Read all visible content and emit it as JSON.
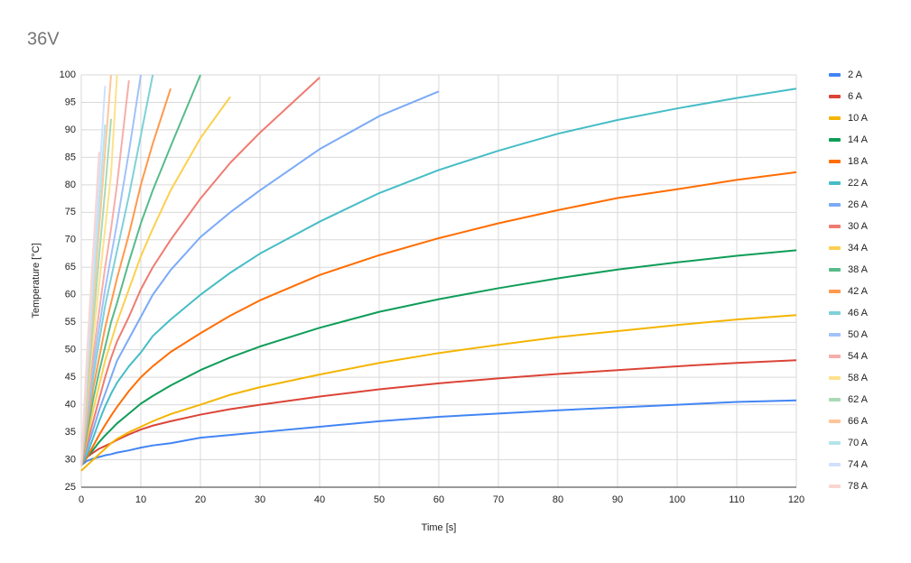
{
  "chart_data": {
    "type": "line",
    "title": "36V",
    "x_label": "Time [s]",
    "y_label": "Temperature [°C]",
    "x": [
      0,
      1,
      2,
      3,
      4,
      5,
      6,
      8,
      10,
      12,
      15,
      20,
      25,
      30,
      40,
      50,
      60,
      70,
      80,
      90,
      100,
      110,
      120
    ],
    "xlim": [
      0,
      120
    ],
    "xticks": [
      0,
      10,
      20,
      30,
      40,
      50,
      60,
      70,
      80,
      90,
      100,
      110,
      120
    ],
    "ylim": [
      25,
      100
    ],
    "yticks": [
      25,
      30,
      35,
      40,
      45,
      50,
      55,
      60,
      65,
      70,
      75,
      80,
      85,
      90,
      95,
      100
    ],
    "grid": true,
    "legend": "right",
    "series": [
      {
        "name": "2 A",
        "color": "#4285f4",
        "values": [
          29,
          29.8,
          30.2,
          30.5,
          30.8,
          31,
          31.3,
          31.7,
          32.2,
          32.6,
          33,
          34,
          34.5,
          35,
          36,
          37,
          37.8,
          38.4,
          39,
          39.5,
          40,
          40.5,
          40.8
        ]
      },
      {
        "name": "6 A",
        "color": "#db4437",
        "values": [
          29,
          30.5,
          31.3,
          32,
          32.5,
          33,
          33.6,
          34.6,
          35.5,
          36.2,
          37,
          38.2,
          39.2,
          40,
          41.5,
          42.8,
          43.9,
          44.8,
          45.6,
          46.3,
          47,
          47.6,
          48.1
        ]
      },
      {
        "name": "10 A",
        "color": "#f4b400",
        "values": [
          28,
          29,
          30,
          31,
          32,
          33,
          33.8,
          35,
          36,
          37,
          38.3,
          40,
          41.8,
          43.2,
          45.5,
          47.6,
          49.4,
          50.9,
          52.3,
          53.4,
          54.5,
          55.5,
          56.3
        ]
      },
      {
        "name": "14 A",
        "color": "#0f9d58",
        "values": [
          29,
          30.5,
          31.8,
          33.2,
          34.4,
          35.5,
          36.6,
          38.4,
          40.2,
          41.6,
          43.5,
          46.3,
          48.6,
          50.6,
          54,
          56.9,
          59.2,
          61.2,
          63,
          64.6,
          65.9,
          67.1,
          68.1
        ]
      },
      {
        "name": "18 A",
        "color": "#ff6d01",
        "values": [
          29,
          30.5,
          32.5,
          34.5,
          36.3,
          38,
          39.6,
          42.5,
          45,
          47,
          49.6,
          53,
          56.2,
          59,
          63.6,
          67.2,
          70.3,
          73,
          75.4,
          77.6,
          79.2,
          80.9,
          82.3
        ]
      },
      {
        "name": "22 A",
        "color": "#46bdc6",
        "values": [
          29,
          31,
          34,
          37,
          39.7,
          42,
          44,
          47,
          49.5,
          52.5,
          55.5,
          60,
          64,
          67.5,
          73.3,
          78.5,
          82.7,
          86.2,
          89.3,
          91.8,
          93.9,
          95.8,
          97.5
        ]
      },
      {
        "name": "26 A",
        "color": "#7baaf7",
        "values": [
          29,
          32,
          35.5,
          39,
          42,
          45,
          48,
          52,
          56,
          60,
          64.5,
          70.5,
          75,
          79,
          86.5,
          92.5,
          97,
          null,
          null,
          null,
          null,
          null,
          null
        ]
      },
      {
        "name": "30 A",
        "color": "#f07b72",
        "values": [
          29,
          33,
          37,
          41,
          45,
          48.5,
          51.5,
          56,
          61,
          65,
          70,
          77.5,
          84,
          89.5,
          99.5,
          null,
          null,
          null,
          null,
          null,
          null,
          null,
          null
        ]
      },
      {
        "name": "34 A",
        "color": "#fcd04f",
        "values": [
          29,
          34,
          39,
          43.5,
          48,
          51.5,
          55,
          61,
          67,
          72,
          79,
          88.5,
          96,
          null,
          null,
          null,
          null,
          null,
          null,
          null,
          null,
          null,
          null
        ]
      },
      {
        "name": "38 A",
        "color": "#57bb8a",
        "values": [
          29,
          35,
          41,
          46,
          50.5,
          55,
          58.5,
          66,
          73,
          79,
          87,
          100,
          null,
          null,
          null,
          null,
          null,
          null,
          null,
          null,
          null,
          null,
          null
        ]
      },
      {
        "name": "42 A",
        "color": "#ff994d",
        "values": [
          29,
          36,
          43,
          48.5,
          54,
          58.5,
          63,
          71,
          80,
          87.5,
          97.5,
          null,
          null,
          null,
          null,
          null,
          null,
          null,
          null,
          null,
          null,
          null,
          null
        ]
      },
      {
        "name": "46 A",
        "color": "#7ed1d7",
        "values": [
          29,
          37,
          45,
          51.5,
          58,
          63,
          68,
          78,
          89,
          100,
          null,
          null,
          null,
          null,
          null,
          null,
          null,
          null,
          null,
          null,
          null,
          null,
          null
        ]
      },
      {
        "name": "50 A",
        "color": "#a1c2fa",
        "values": [
          29,
          38,
          47,
          54,
          61,
          67,
          73,
          86,
          100,
          null,
          null,
          null,
          null,
          null,
          null,
          null,
          null,
          null,
          null,
          null,
          null,
          null,
          null
        ]
      },
      {
        "name": "54 A",
        "color": "#f6aea9",
        "values": [
          29,
          39,
          49,
          57,
          65,
          72,
          80,
          99,
          null,
          null,
          null,
          null,
          null,
          null,
          null,
          null,
          null,
          null,
          null,
          null,
          null,
          null,
          null
        ]
      },
      {
        "name": "58 A",
        "color": "#fde18b",
        "values": [
          29,
          41,
          52,
          62,
          72,
          82,
          100,
          null,
          null,
          null,
          null,
          null,
          null,
          null,
          null,
          null,
          null,
          null,
          null,
          null,
          null,
          null,
          null
        ]
      },
      {
        "name": "62 A",
        "color": "#a8dab5",
        "values": [
          29,
          42,
          55,
          67,
          79,
          92,
          null,
          null,
          null,
          null,
          null,
          null,
          null,
          null,
          null,
          null,
          null,
          null,
          null,
          null,
          null,
          null,
          null
        ]
      },
      {
        "name": "66 A",
        "color": "#ffc599",
        "values": [
          29,
          44,
          58,
          72,
          86,
          100,
          null,
          null,
          null,
          null,
          null,
          null,
          null,
          null,
          null,
          null,
          null,
          null,
          null,
          null,
          null,
          null,
          null
        ]
      },
      {
        "name": "70 A",
        "color": "#b3e5e9",
        "values": [
          29,
          46,
          61,
          76,
          91,
          null,
          null,
          null,
          null,
          null,
          null,
          null,
          null,
          null,
          null,
          null,
          null,
          null,
          null,
          null,
          null,
          null,
          null
        ]
      },
      {
        "name": "74 A",
        "color": "#d0e0fd",
        "values": [
          29,
          48,
          64,
          81,
          98,
          null,
          null,
          null,
          null,
          null,
          null,
          null,
          null,
          null,
          null,
          null,
          null,
          null,
          null,
          null,
          null,
          null,
          null
        ]
      },
      {
        "name": "78 A",
        "color": "#fad5d2",
        "values": [
          29,
          50,
          68,
          86,
          null,
          null,
          null,
          null,
          null,
          null,
          null,
          null,
          null,
          null,
          null,
          null,
          null,
          null,
          null,
          null,
          null,
          null,
          null
        ]
      }
    ]
  }
}
